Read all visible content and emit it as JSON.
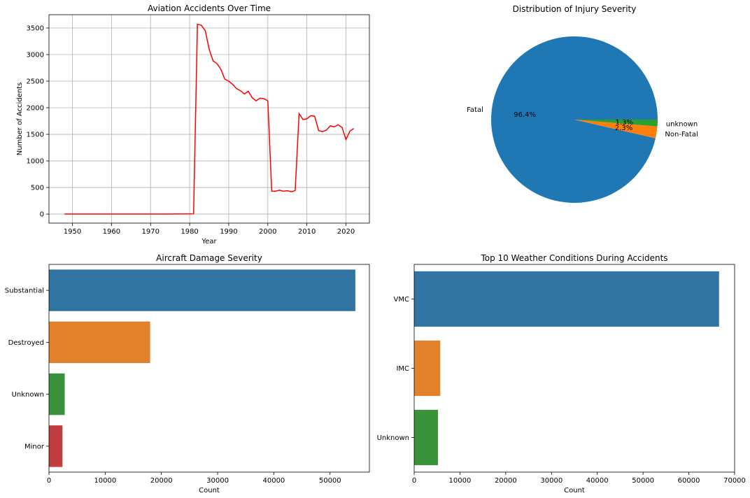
{
  "chart_data": [
    {
      "type": "line",
      "title": "Aviation Accidents Over Time",
      "xlabel": "Year",
      "ylabel": "Number of Accidents",
      "grid": true,
      "xlim": [
        1944,
        2026
      ],
      "ylim": [
        -170,
        3750
      ],
      "xticks": [
        1950,
        1960,
        1970,
        1980,
        1990,
        2000,
        2010,
        2020
      ],
      "yticks": [
        0,
        500,
        1000,
        1500,
        2000,
        2500,
        3000,
        3500
      ],
      "color": "#ff0000",
      "x": [
        1948,
        1962,
        1974,
        1981,
        1982,
        1983,
        1984,
        1985,
        1986,
        1987,
        1988,
        1989,
        1990,
        1991,
        1992,
        1993,
        1994,
        1995,
        1996,
        1997,
        1998,
        1999,
        2000,
        2001,
        2002,
        2003,
        2004,
        2005,
        2006,
        2007,
        2008,
        2009,
        2010,
        2011,
        2012,
        2013,
        2014,
        2015,
        2016,
        2017,
        2018,
        2019,
        2020,
        2021,
        2022
      ],
      "y": [
        1,
        1,
        1,
        4,
        3570,
        3550,
        3450,
        3100,
        2880,
        2830,
        2720,
        2540,
        2500,
        2440,
        2360,
        2320,
        2260,
        2310,
        2190,
        2130,
        2180,
        2170,
        2130,
        430,
        430,
        450,
        430,
        440,
        420,
        440,
        1890,
        1780,
        1790,
        1850,
        1840,
        1570,
        1550,
        1580,
        1660,
        1640,
        1680,
        1630,
        1400,
        1560,
        1610
      ]
    },
    {
      "type": "pie",
      "title": "Distribution of Injury Severity",
      "slices": [
        {
          "label": "Fatal",
          "value": 96.4,
          "pct_label": "96.4%",
          "color": "#1f77b4"
        },
        {
          "label": "Non-Fatal",
          "value": 2.3,
          "pct_label": "2.3%",
          "color": "#ff7f0e"
        },
        {
          "label": "unknown",
          "value": 1.3,
          "pct_label": "1.3%",
          "color": "#2ca02c"
        }
      ]
    },
    {
      "type": "bar",
      "orientation": "horizontal",
      "title": "Aircraft Damage Severity",
      "xlabel": "Count",
      "ylabel": "",
      "xlim": [
        0,
        57000
      ],
      "xticks": [
        0,
        10000,
        20000,
        30000,
        40000,
        50000
      ],
      "categories": [
        "Substantial",
        "Destroyed",
        "Unknown",
        "Minor"
      ],
      "values": [
        54500,
        18000,
        2800,
        2400
      ],
      "colors": [
        "#3274a1",
        "#e1812c",
        "#3a923a",
        "#c03d3e"
      ]
    },
    {
      "type": "bar",
      "orientation": "horizontal",
      "title": "Top 10 Weather Conditions During Accidents",
      "xlabel": "Count",
      "ylabel": "",
      "xlim": [
        0,
        70000
      ],
      "xticks": [
        0,
        10000,
        20000,
        30000,
        40000,
        50000,
        60000,
        70000
      ],
      "categories": [
        "VMC",
        "IMC",
        "Unknown"
      ],
      "values": [
        66600,
        5700,
        5200
      ],
      "colors": [
        "#3274a1",
        "#e1812c",
        "#3a923a"
      ]
    }
  ]
}
